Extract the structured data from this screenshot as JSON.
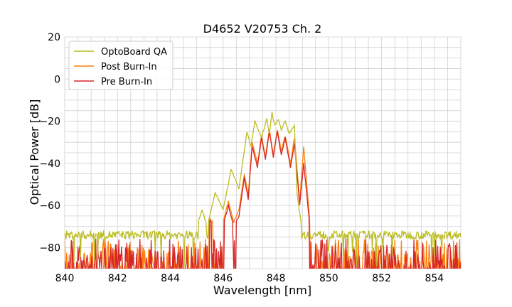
{
  "chart_data": {
    "type": "line",
    "title": "D4652 V20753 Ch. 2",
    "xlabel": "Wavelength [nm]",
    "ylabel": "Optical Power [dB]",
    "xlim": [
      840,
      855
    ],
    "ylim": [
      -90,
      20
    ],
    "xticks": [
      840,
      842,
      844,
      846,
      848,
      850,
      852,
      854
    ],
    "yticks": [
      20,
      0,
      -20,
      -40,
      -60,
      -80
    ],
    "yticklabels": [
      "20",
      "0",
      "−20",
      "−40",
      "−60",
      "−80"
    ],
    "grid": true,
    "legend_position": "top-left",
    "noise_floor": {
      "x_start": 840,
      "x_end": 855,
      "upper_db": -72,
      "lower_db": -90
    },
    "series": [
      {
        "name": "OptoBoard QA",
        "color": "#bcbd22",
        "points": [
          [
            840,
            -74
          ],
          [
            841,
            -74
          ],
          [
            842,
            -74
          ],
          [
            843,
            -73
          ],
          [
            844,
            -72
          ],
          [
            844.5,
            -71
          ],
          [
            845,
            -70
          ],
          [
            845.2,
            -62
          ],
          [
            845.4,
            -70
          ],
          [
            845.7,
            -54
          ],
          [
            846,
            -62
          ],
          [
            846.3,
            -43
          ],
          [
            846.6,
            -52
          ],
          [
            846.9,
            -25
          ],
          [
            847.05,
            -32
          ],
          [
            847.2,
            -20
          ],
          [
            847.45,
            -28
          ],
          [
            847.65,
            -19
          ],
          [
            847.75,
            -26
          ],
          [
            847.85,
            -16
          ],
          [
            847.95,
            -22
          ],
          [
            848.1,
            -19
          ],
          [
            848.2,
            -24
          ],
          [
            848.35,
            -20
          ],
          [
            848.5,
            -26
          ],
          [
            848.7,
            -22
          ],
          [
            848.8,
            -55
          ],
          [
            849,
            -72
          ],
          [
            849.3,
            -79
          ],
          [
            850,
            -75
          ],
          [
            852,
            -75
          ],
          [
            855,
            -75
          ]
        ]
      },
      {
        "name": "Post Burn-In",
        "color": "#ff7f0e",
        "points": [
          [
            840,
            -85
          ],
          [
            844,
            -85
          ],
          [
            845.2,
            -82
          ],
          [
            845.5,
            -66
          ],
          [
            845.8,
            -72
          ],
          [
            846,
            -68
          ],
          [
            846.2,
            -58
          ],
          [
            846.4,
            -68
          ],
          [
            846.6,
            -62
          ],
          [
            846.8,
            -45
          ],
          [
            846.95,
            -55
          ],
          [
            847.1,
            -30
          ],
          [
            847.3,
            -40
          ],
          [
            847.45,
            -27
          ],
          [
            847.6,
            -37
          ],
          [
            847.75,
            -24
          ],
          [
            847.9,
            -36
          ],
          [
            848.05,
            -24
          ],
          [
            848.2,
            -34
          ],
          [
            848.35,
            -27
          ],
          [
            848.55,
            -40
          ],
          [
            848.7,
            -28
          ],
          [
            848.9,
            -58
          ],
          [
            849.05,
            -32
          ],
          [
            849.3,
            -70
          ],
          [
            849.5,
            -82
          ],
          [
            850,
            -85
          ],
          [
            855,
            -85
          ]
        ]
      },
      {
        "name": "Pre Burn-In",
        "color": "#d62728",
        "points": [
          [
            840,
            -85
          ],
          [
            844,
            -85
          ],
          [
            845.2,
            -82
          ],
          [
            845.5,
            -67
          ],
          [
            845.8,
            -72
          ],
          [
            846,
            -70
          ],
          [
            846.2,
            -60
          ],
          [
            846.4,
            -70
          ],
          [
            846.6,
            -65
          ],
          [
            846.8,
            -47
          ],
          [
            846.95,
            -57
          ],
          [
            847.1,
            -32
          ],
          [
            847.3,
            -42
          ],
          [
            847.45,
            -28
          ],
          [
            847.6,
            -38
          ],
          [
            847.75,
            -25
          ],
          [
            847.9,
            -37
          ],
          [
            848.05,
            -25
          ],
          [
            848.2,
            -36
          ],
          [
            848.35,
            -28
          ],
          [
            848.55,
            -42
          ],
          [
            848.7,
            -31
          ],
          [
            848.9,
            -60
          ],
          [
            849.05,
            -40
          ],
          [
            849.3,
            -72
          ],
          [
            849.5,
            -82
          ],
          [
            850,
            -85
          ],
          [
            855,
            -85
          ]
        ]
      }
    ]
  }
}
